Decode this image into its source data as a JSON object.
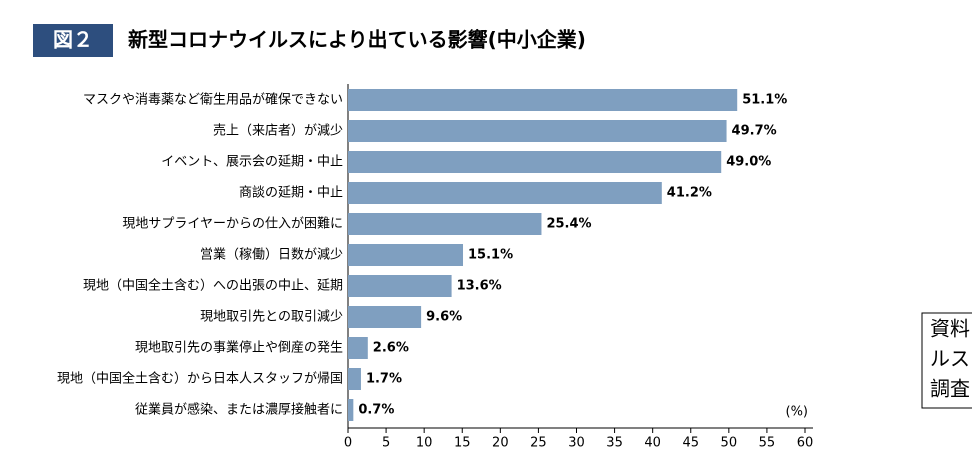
{
  "chart_data": {
    "type": "hbar",
    "figure_label": "図２",
    "title": "新型コロナウイルスにより出ている影響(中小企業)",
    "categories": [
      "マスクや消毒薬など衛生用品が確保できない",
      "売上（来店者）が減少",
      "イベント、展示会の延期・中止",
      "商談の延期・中止",
      "現地サプライヤーからの仕入が困難に",
      "営業（稼働）日数が減少",
      "現地（中国全土含む）への出張の中止、延期",
      "現地取引先との取引減少",
      "現地取引先の事業停止や倒産の発生",
      "現地（中国全土含む）から日本人スタッフが帰国",
      "従業員が感染、または濃厚接触者に"
    ],
    "values": [
      51.1,
      49.7,
      49.0,
      41.2,
      25.4,
      15.1,
      13.6,
      9.6,
      2.6,
      1.7,
      0.7
    ],
    "value_labels": [
      "51.1%",
      "49.7%",
      "49.0%",
      "41.2%",
      "25.4%",
      "15.1%",
      "13.6%",
      "9.6%",
      "2.6%",
      "1.7%",
      "0.7%"
    ],
    "color": "#7f9fc0",
    "unit": "(%)",
    "xlim": [
      0,
      60
    ],
    "xticks": [
      0,
      5,
      10,
      15,
      20,
      25,
      30,
      35,
      40,
      45,
      50,
      55,
      60
    ],
    "source_note": [
      "資料",
      "ルス",
      "調査"
    ]
  }
}
